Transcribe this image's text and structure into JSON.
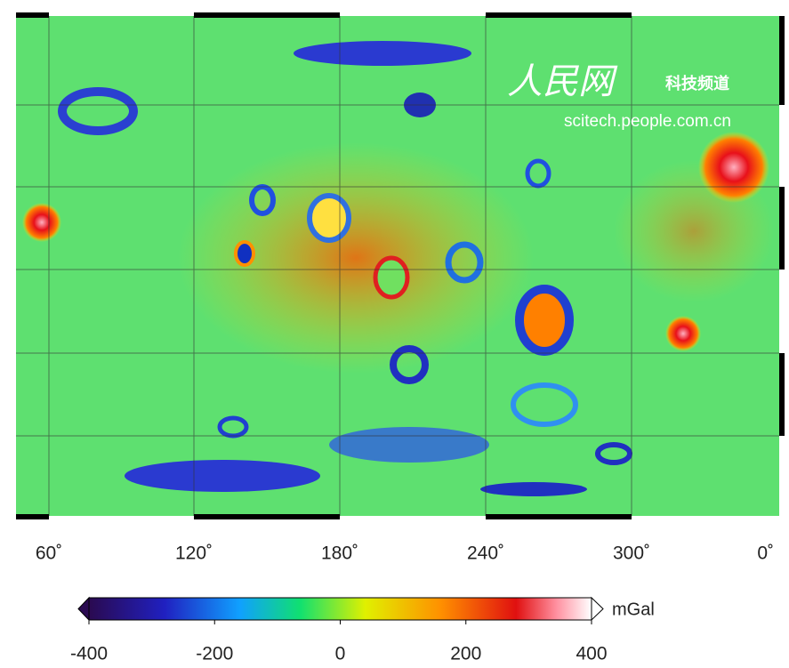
{
  "map": {
    "x_labels": [
      "60˚",
      "120˚",
      "180˚",
      "240˚",
      "300˚",
      "0˚"
    ]
  },
  "watermark": {
    "logo": "人民网",
    "channel": "科技频道",
    "url": "scitech.people.com.cn"
  },
  "colorbar": {
    "unit": "mGal",
    "range": [
      -400,
      400
    ],
    "ticks": [
      -400,
      -200,
      0,
      200,
      400
    ]
  }
}
